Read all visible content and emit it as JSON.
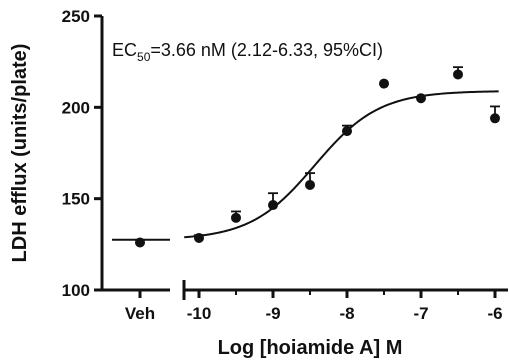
{
  "chart_data": {
    "type": "scatter",
    "title": "",
    "annotation": {
      "prefix": "EC",
      "subscript": "50",
      "suffix": "=3.66 nM (2.12-6.33, 95%CI)"
    },
    "xlabel": "Log [hoiamide A] M",
    "ylabel": "LDH efflux (units/plate)",
    "ylim": [
      100,
      250
    ],
    "yticks": [
      100,
      150,
      200,
      250
    ],
    "xlim": [
      -10.2,
      -5.95
    ],
    "xticks": [
      -10,
      -9,
      -8,
      -7,
      -6
    ],
    "xtick_labels": [
      "-10",
      "-9",
      "-8",
      "-7",
      "-6"
    ],
    "vehicle": {
      "label": "Veh",
      "y": 126,
      "error": 1.5
    },
    "points": [
      {
        "x": -10.0,
        "y": 128.5,
        "error": 1.5
      },
      {
        "x": -9.5,
        "y": 139.5,
        "error": 3.5
      },
      {
        "x": -9.0,
        "y": 146.5,
        "error": 6.5
      },
      {
        "x": -8.5,
        "y": 157.5,
        "error": 6.5
      },
      {
        "x": -8.0,
        "y": 187,
        "error": 3
      },
      {
        "x": -7.5,
        "y": 213,
        "error": 0
      },
      {
        "x": -7.0,
        "y": 205,
        "error": 0
      },
      {
        "x": -6.5,
        "y": 218,
        "error": 4
      },
      {
        "x": -6.0,
        "y": 194,
        "error": 6.5
      }
    ],
    "fit": {
      "bottom": 127.5,
      "top": 209,
      "logEC50": -8.436,
      "hillslope": 1.0
    },
    "colors": {
      "ink": "#111111"
    }
  }
}
